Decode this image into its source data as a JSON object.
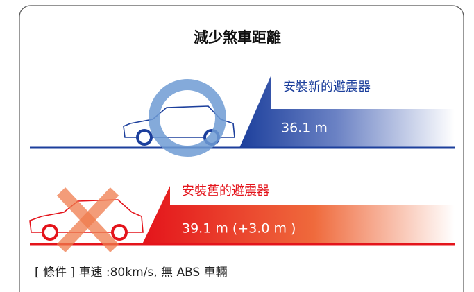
{
  "title": "減少煞車距離",
  "items": [
    {
      "label": "安裝新的避震器",
      "distance": "36.1 m"
    },
    {
      "label": "安裝舊的避震器",
      "distance": "39.1 m (+3.0 m )"
    }
  ],
  "note": "[ 條件 ] 車速 :80km/s, 無 ABS 車輛"
}
